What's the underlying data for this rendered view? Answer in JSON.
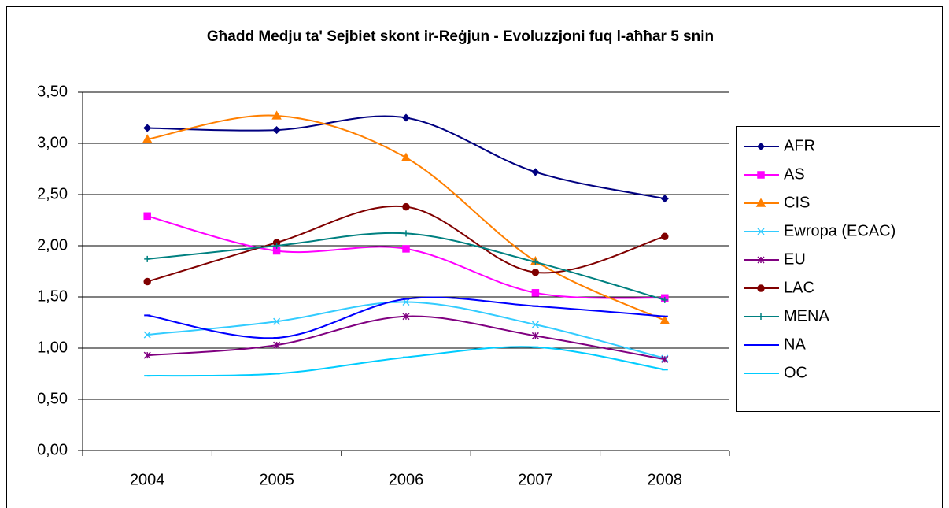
{
  "chart_data": {
    "type": "line",
    "smooth": true,
    "grid": true,
    "legend": "right",
    "title": "Għadd Medju ta' Sejbiet skont ir-Reġjun - Evoluzzjoni fuq l-aħħar 5 snin",
    "categories": [
      "2004",
      "2005",
      "2006",
      "2007",
      "2008"
    ],
    "ylim": [
      0,
      3.5
    ],
    "yticks": [
      {
        "value": 0,
        "label": "0,00"
      },
      {
        "value": 0.5,
        "label": "0,50"
      },
      {
        "value": 1,
        "label": "1,00"
      },
      {
        "value": 1.5,
        "label": "1,50"
      },
      {
        "value": 2,
        "label": "2,00"
      },
      {
        "value": 2.5,
        "label": "2,50"
      },
      {
        "value": 3,
        "label": "3,00"
      },
      {
        "value": 3.5,
        "label": "3,50"
      }
    ],
    "series": [
      {
        "name": "AFR",
        "color": "#000080",
        "marker": "diamond",
        "values": [
          3.15,
          3.13,
          3.25,
          2.72,
          2.46
        ]
      },
      {
        "name": "AS",
        "color": "#ff00ff",
        "marker": "square",
        "values": [
          2.29,
          1.95,
          1.97,
          1.54,
          1.49
        ]
      },
      {
        "name": "CIS",
        "color": "#ff7f00",
        "marker": "triangle",
        "values": [
          3.04,
          3.27,
          2.86,
          1.85,
          1.27
        ]
      },
      {
        "name": "Ewropa (ECAC)",
        "color": "#33ccff",
        "marker": "x",
        "values": [
          1.13,
          1.26,
          1.45,
          1.23,
          0.9
        ]
      },
      {
        "name": "EU",
        "color": "#800080",
        "marker": "star",
        "values": [
          0.93,
          1.03,
          1.31,
          1.12,
          0.89
        ]
      },
      {
        "name": "LAC",
        "color": "#800000",
        "marker": "circle",
        "values": [
          1.65,
          2.03,
          2.38,
          1.74,
          2.09
        ]
      },
      {
        "name": "MENA",
        "color": "#008080",
        "marker": "plus",
        "values": [
          1.87,
          2.0,
          2.12,
          1.84,
          1.47
        ]
      },
      {
        "name": "NA",
        "color": "#0000ff",
        "marker": "dash",
        "values": [
          1.32,
          1.1,
          1.48,
          1.41,
          1.31
        ]
      },
      {
        "name": "OC",
        "color": "#00ccff",
        "marker": "dash",
        "values": [
          0.73,
          0.75,
          0.91,
          1.01,
          0.79
        ]
      }
    ]
  }
}
